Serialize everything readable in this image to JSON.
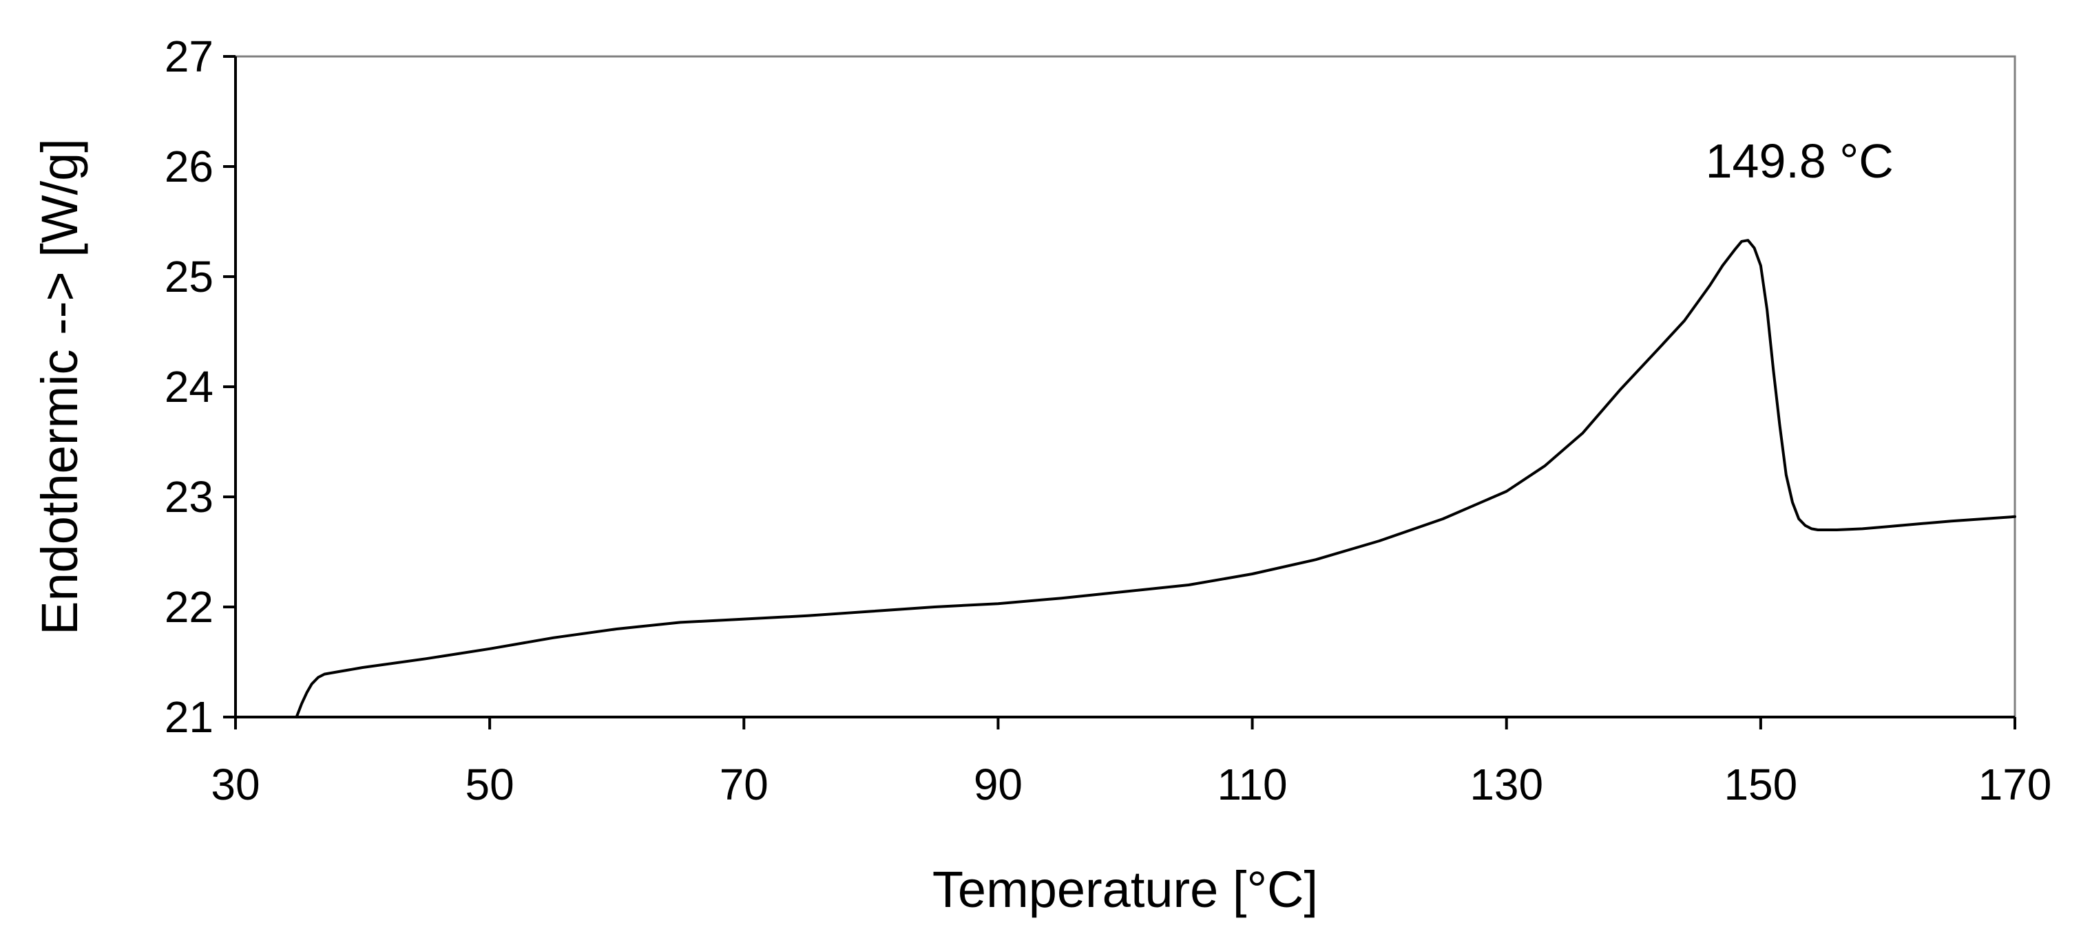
{
  "chart_data": {
    "type": "line",
    "title": "",
    "xlabel": "Temperature [°C]",
    "ylabel": "Endothermic --> [W/g]",
    "xlim": [
      30,
      170
    ],
    "ylim": [
      21,
      27
    ],
    "xticks": [
      30,
      50,
      70,
      90,
      110,
      130,
      150,
      170
    ],
    "yticks": [
      21,
      22,
      23,
      24,
      25,
      26,
      27
    ],
    "grid": false,
    "legend": "none",
    "line_color": "#000000",
    "annotations": [
      {
        "text": "149.8 °C",
        "x": 149.8,
        "y": 25.35
      }
    ],
    "series": [
      {
        "x": [
          34.8,
          35.2,
          35.6,
          36.0,
          36.5,
          37.0,
          38.0,
          40,
          45,
          50,
          55,
          60,
          65,
          70,
          75,
          80,
          85,
          90,
          95,
          100,
          105,
          110,
          115,
          120,
          125,
          130,
          133,
          136,
          139,
          142,
          144,
          146,
          147,
          148,
          148.5,
          149,
          149.5,
          150,
          150.5,
          151,
          151.5,
          152,
          152.5,
          153,
          153.5,
          154,
          154.5,
          155,
          156,
          158,
          160,
          165,
          170
        ],
        "y": [
          21.0,
          21.12,
          21.22,
          21.3,
          21.36,
          21.39,
          21.41,
          21.45,
          21.53,
          21.62,
          21.72,
          21.8,
          21.86,
          21.89,
          21.92,
          21.96,
          22.0,
          22.03,
          22.08,
          22.14,
          22.2,
          22.3,
          22.43,
          22.6,
          22.8,
          23.05,
          23.28,
          23.58,
          23.98,
          24.35,
          24.6,
          24.92,
          25.1,
          25.25,
          25.32,
          25.33,
          25.26,
          25.1,
          24.7,
          24.15,
          23.65,
          23.2,
          22.95,
          22.8,
          22.74,
          22.71,
          22.7,
          22.7,
          22.7,
          22.71,
          22.73,
          22.78,
          22.82
        ]
      }
    ]
  }
}
